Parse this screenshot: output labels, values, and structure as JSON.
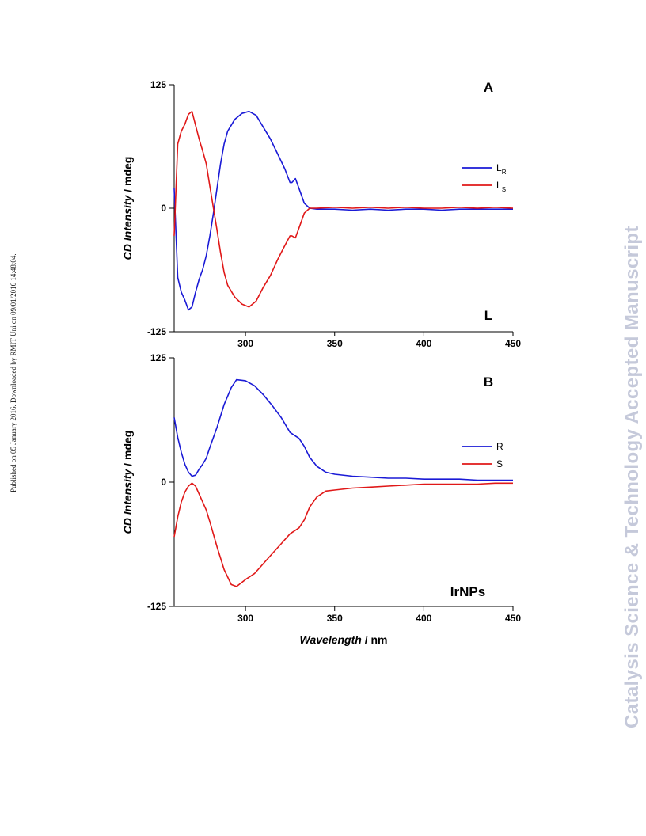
{
  "side_note": "Published on 05 January 2016. Downloaded by RMIT Uni on 09/01/2016 14:48:04.",
  "watermark": "Catalysis Science & Technology Accepted Manuscript",
  "colors": {
    "blue": "#1a1ad6",
    "red": "#e01818",
    "axis": "#000000"
  },
  "chart_data": [
    {
      "type": "line",
      "panel": "A",
      "corner_label": "L",
      "ylabel": {
        "italic": "CD Intensity",
        "plain": " / mdeg"
      },
      "xlabel": "",
      "xlim": [
        260,
        450
      ],
      "ylim": [
        -125,
        125
      ],
      "xticks": [
        300,
        350,
        400,
        450
      ],
      "yticks": [
        125,
        0,
        -125
      ],
      "legend": "right",
      "series": [
        {
          "name": "L",
          "sub": "R",
          "color": "#1a1ad6",
          "x": [
            260,
            262,
            264,
            266,
            268,
            270,
            272,
            274,
            276,
            278,
            280,
            282,
            284,
            286,
            288,
            290,
            294,
            298,
            302,
            306,
            310,
            314,
            318,
            322,
            325,
            326,
            328,
            330,
            333,
            336,
            340,
            350,
            360,
            370,
            380,
            390,
            400,
            410,
            420,
            430,
            440,
            450
          ],
          "y": [
            20,
            -70,
            -85,
            -93,
            -103,
            -100,
            -85,
            -72,
            -62,
            -48,
            -28,
            -5,
            20,
            45,
            65,
            78,
            90,
            96,
            98,
            94,
            82,
            70,
            55,
            40,
            26,
            26,
            30,
            20,
            5,
            0,
            -1,
            -1,
            -2,
            -1,
            -2,
            -1,
            -1,
            -2,
            -1,
            -1,
            -1,
            -1
          ]
        },
        {
          "name": "L",
          "sub": "S",
          "color": "#e01818",
          "x": [
            260,
            262,
            264,
            266,
            268,
            270,
            272,
            274,
            276,
            278,
            280,
            282,
            284,
            286,
            288,
            290,
            294,
            298,
            302,
            306,
            310,
            314,
            318,
            322,
            325,
            326,
            328,
            330,
            333,
            336,
            340,
            350,
            360,
            370,
            380,
            390,
            400,
            410,
            420,
            430,
            440,
            450
          ],
          "y": [
            -28,
            65,
            78,
            85,
            95,
            98,
            84,
            70,
            58,
            45,
            22,
            0,
            -22,
            -45,
            -65,
            -78,
            -90,
            -97,
            -100,
            -94,
            -80,
            -68,
            -52,
            -38,
            -28,
            -28,
            -30,
            -20,
            -5,
            0,
            0,
            1,
            0,
            1,
            0,
            1,
            0,
            0,
            1,
            0,
            1,
            0
          ]
        }
      ]
    },
    {
      "type": "line",
      "panel": "B",
      "corner_label": "IrNPs",
      "ylabel": {
        "italic": "CD Intensity",
        "plain": " / mdeg"
      },
      "xlabel": {
        "italic": "Wavelength",
        "plain": " / nm"
      },
      "xlim": [
        260,
        450
      ],
      "ylim": [
        -125,
        125
      ],
      "xticks": [
        300,
        350,
        400,
        450
      ],
      "yticks": [
        125,
        0,
        -125
      ],
      "legend": "right",
      "series": [
        {
          "name": "R",
          "sub": "",
          "color": "#1a1ad6",
          "x": [
            260,
            262,
            264,
            266,
            268,
            270,
            272,
            274,
            276,
            278,
            280,
            284,
            288,
            292,
            295,
            300,
            305,
            310,
            315,
            320,
            325,
            330,
            333,
            336,
            340,
            345,
            350,
            360,
            370,
            380,
            390,
            400,
            410,
            420,
            430,
            440,
            450
          ],
          "y": [
            65,
            45,
            30,
            18,
            10,
            6,
            7,
            13,
            18,
            24,
            35,
            55,
            78,
            95,
            103,
            102,
            97,
            88,
            77,
            65,
            50,
            44,
            36,
            25,
            16,
            10,
            8,
            6,
            5,
            4,
            4,
            3,
            3,
            3,
            2,
            2,
            2
          ]
        },
        {
          "name": "S",
          "sub": "",
          "color": "#e01818",
          "x": [
            260,
            262,
            264,
            266,
            268,
            270,
            272,
            274,
            276,
            278,
            280,
            284,
            288,
            292,
            295,
            300,
            305,
            310,
            315,
            320,
            325,
            330,
            333,
            336,
            340,
            345,
            350,
            360,
            370,
            380,
            390,
            400,
            410,
            420,
            430,
            440,
            450
          ],
          "y": [
            -55,
            -35,
            -20,
            -10,
            -4,
            -1,
            -4,
            -12,
            -20,
            -28,
            -40,
            -65,
            -88,
            -103,
            -105,
            -98,
            -92,
            -82,
            -72,
            -62,
            -52,
            -46,
            -38,
            -25,
            -15,
            -9,
            -8,
            -6,
            -5,
            -4,
            -3,
            -2,
            -2,
            -2,
            -2,
            -1,
            -1
          ]
        }
      ]
    }
  ]
}
